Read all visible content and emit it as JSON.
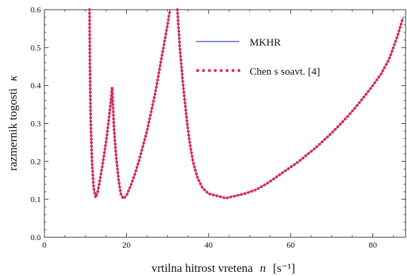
{
  "chart_data": {
    "type": "line",
    "xlabel": "vrtilna hitrost vretena",
    "xlabel_symbol": "n",
    "xlabel_unit": "[s⁻¹]",
    "ylabel": "razmernik togosti",
    "ylabel_symbol": "κ",
    "xlim": [
      0,
      88
    ],
    "ylim": [
      0,
      0.6
    ],
    "x_ticks": [
      0,
      20,
      40,
      60,
      80
    ],
    "x_tick_labels": [
      "0",
      "20",
      "40",
      "60",
      "80"
    ],
    "y_ticks": [
      0,
      0.1,
      0.2,
      0.3,
      0.4,
      0.5,
      0.6
    ],
    "y_tick_labels": [
      "0.0",
      "0.1",
      "0.2",
      "0.3",
      "0.4",
      "0.5",
      "0.6"
    ],
    "grid": false,
    "legend_position": "top-right",
    "series": [
      {
        "name": "MKHR",
        "style": "solid",
        "color": "#2a3fd6",
        "points": [
          [
            11.0,
            0.6
          ],
          [
            11.1,
            0.45
          ],
          [
            11.3,
            0.3
          ],
          [
            11.6,
            0.2
          ],
          [
            12.0,
            0.13
          ],
          [
            12.5,
            0.105
          ],
          [
            13.0,
            0.12
          ],
          [
            13.6,
            0.155
          ],
          [
            14.3,
            0.2
          ],
          [
            15.0,
            0.25
          ],
          [
            15.6,
            0.3
          ],
          [
            16.1,
            0.35
          ],
          [
            16.5,
            0.395
          ],
          [
            16.7,
            0.35
          ],
          [
            16.9,
            0.3
          ],
          [
            17.2,
            0.25
          ],
          [
            17.6,
            0.2
          ],
          [
            18.1,
            0.15
          ],
          [
            18.6,
            0.115
          ],
          [
            19.2,
            0.102
          ],
          [
            20.0,
            0.11
          ],
          [
            21.0,
            0.135
          ],
          [
            22.0,
            0.165
          ],
          [
            23.0,
            0.2
          ],
          [
            24.0,
            0.24
          ],
          [
            25.0,
            0.28
          ],
          [
            26.0,
            0.33
          ],
          [
            27.0,
            0.38
          ],
          [
            28.0,
            0.44
          ],
          [
            29.0,
            0.5
          ],
          [
            30.0,
            0.56
          ],
          [
            30.6,
            0.6
          ],
          [
            32.4,
            0.6
          ],
          [
            32.7,
            0.55
          ],
          [
            33.0,
            0.5
          ],
          [
            33.4,
            0.45
          ],
          [
            33.8,
            0.4
          ],
          [
            34.3,
            0.35
          ],
          [
            34.8,
            0.3
          ],
          [
            35.4,
            0.25
          ],
          [
            36.2,
            0.2
          ],
          [
            37.2,
            0.16
          ],
          [
            38.5,
            0.13
          ],
          [
            40.0,
            0.115
          ],
          [
            44.2,
            0.103
          ],
          [
            48.8,
            0.115
          ],
          [
            51.5,
            0.125
          ],
          [
            54.0,
            0.14
          ],
          [
            56.0,
            0.155
          ],
          [
            58.0,
            0.17
          ],
          [
            60.0,
            0.185
          ],
          [
            62.0,
            0.2
          ],
          [
            64.0,
            0.218
          ],
          [
            66.0,
            0.235
          ],
          [
            68.0,
            0.255
          ],
          [
            70.0,
            0.275
          ],
          [
            72.0,
            0.297
          ],
          [
            74.0,
            0.32
          ],
          [
            76.0,
            0.345
          ],
          [
            78.0,
            0.372
          ],
          [
            80.0,
            0.4
          ],
          [
            82.0,
            0.43
          ],
          [
            84.0,
            0.47
          ],
          [
            86.0,
            0.53
          ],
          [
            87.4,
            0.58
          ]
        ]
      },
      {
        "name": "Chen s soavt. [4]",
        "style": "dotted",
        "color": "#e8294c",
        "points": [
          [
            11.0,
            0.6
          ],
          [
            11.1,
            0.45
          ],
          [
            11.3,
            0.3
          ],
          [
            11.6,
            0.2
          ],
          [
            12.0,
            0.13
          ],
          [
            12.5,
            0.105
          ],
          [
            13.0,
            0.12
          ],
          [
            13.6,
            0.155
          ],
          [
            14.3,
            0.2
          ],
          [
            15.0,
            0.25
          ],
          [
            15.6,
            0.3
          ],
          [
            16.1,
            0.35
          ],
          [
            16.5,
            0.395
          ],
          [
            16.7,
            0.35
          ],
          [
            16.9,
            0.3
          ],
          [
            17.2,
            0.25
          ],
          [
            17.6,
            0.2
          ],
          [
            18.1,
            0.15
          ],
          [
            18.6,
            0.115
          ],
          [
            19.2,
            0.102
          ],
          [
            20.0,
            0.11
          ],
          [
            21.0,
            0.135
          ],
          [
            22.0,
            0.165
          ],
          [
            23.0,
            0.2
          ],
          [
            24.0,
            0.24
          ],
          [
            25.0,
            0.28
          ],
          [
            26.0,
            0.33
          ],
          [
            27.0,
            0.38
          ],
          [
            28.0,
            0.44
          ],
          [
            29.0,
            0.5
          ],
          [
            30.0,
            0.56
          ],
          [
            30.6,
            0.6
          ],
          [
            32.4,
            0.6
          ],
          [
            32.7,
            0.55
          ],
          [
            33.0,
            0.5
          ],
          [
            33.4,
            0.45
          ],
          [
            33.8,
            0.4
          ],
          [
            34.3,
            0.35
          ],
          [
            34.8,
            0.3
          ],
          [
            35.4,
            0.25
          ],
          [
            36.2,
            0.2
          ],
          [
            37.2,
            0.16
          ],
          [
            38.5,
            0.13
          ],
          [
            40.0,
            0.115
          ],
          [
            44.2,
            0.103
          ],
          [
            48.8,
            0.115
          ],
          [
            51.5,
            0.125
          ],
          [
            54.0,
            0.14
          ],
          [
            56.0,
            0.155
          ],
          [
            58.0,
            0.17
          ],
          [
            60.0,
            0.185
          ],
          [
            62.0,
            0.2
          ],
          [
            64.0,
            0.218
          ],
          [
            66.0,
            0.235
          ],
          [
            68.0,
            0.255
          ],
          [
            70.0,
            0.275
          ],
          [
            72.0,
            0.297
          ],
          [
            74.0,
            0.32
          ],
          [
            76.0,
            0.345
          ],
          [
            78.0,
            0.372
          ],
          [
            80.0,
            0.4
          ],
          [
            82.0,
            0.43
          ],
          [
            84.0,
            0.47
          ],
          [
            86.0,
            0.53
          ],
          [
            87.4,
            0.58
          ]
        ]
      }
    ]
  }
}
